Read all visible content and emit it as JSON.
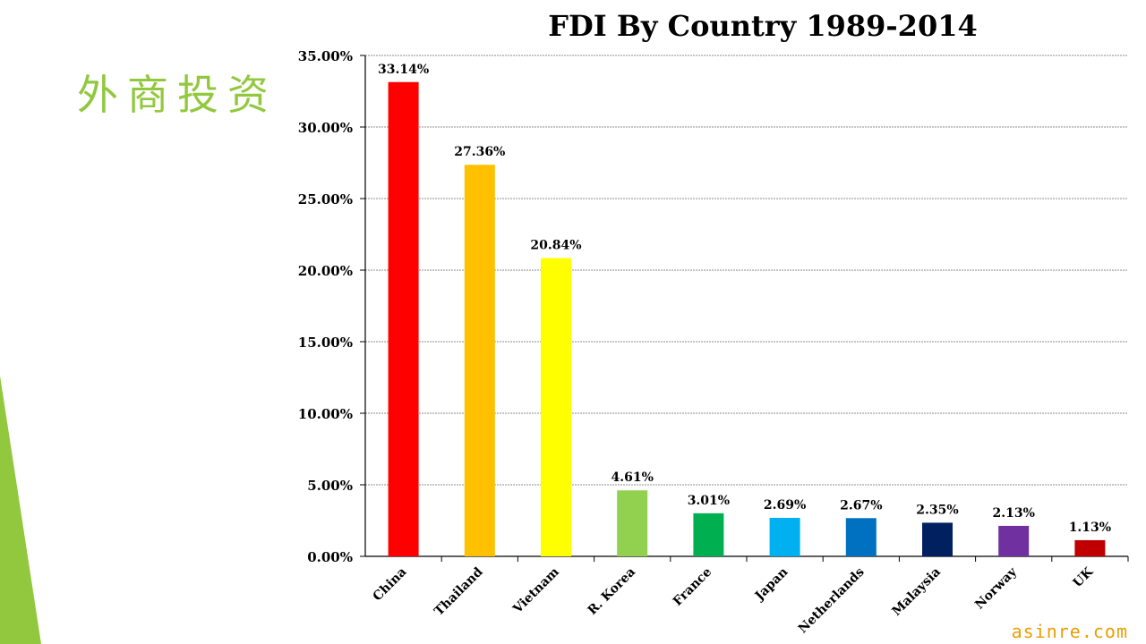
{
  "slide": {
    "title": "外商投资",
    "title_color": "#92c83e",
    "accent_color": "#92c83e",
    "watermark": "asinre.com",
    "watermark_color": "#e8a000"
  },
  "chart_data": {
    "type": "bar",
    "title": "FDI By Country 1989-2014",
    "xlabel": "",
    "ylabel": "",
    "categories": [
      "China",
      "Thailand",
      "Vietnam",
      "R. Korea",
      "France",
      "Japan",
      "Netherlands",
      "Malaysia",
      "Norway",
      "UK"
    ],
    "values": [
      33.14,
      27.36,
      20.84,
      4.61,
      3.01,
      2.69,
      2.67,
      2.35,
      2.13,
      1.13
    ],
    "value_labels": [
      "33.14%",
      "27.36%",
      "20.84%",
      "4.61%",
      "3.01%",
      "2.69%",
      "2.67%",
      "2.35%",
      "2.13%",
      "1.13%"
    ],
    "bar_colors": [
      "#ff0000",
      "#ffc000",
      "#ffff00",
      "#92d050",
      "#00b050",
      "#00b0f0",
      "#0070c0",
      "#002060",
      "#7030a0",
      "#c00000"
    ],
    "ylim": [
      0,
      35
    ],
    "yticks": [
      0,
      5,
      10,
      15,
      20,
      25,
      30,
      35
    ],
    "ytick_labels": [
      "0.00%",
      "5.00%",
      "10.00%",
      "15.00%",
      "20.00%",
      "25.00%",
      "30.00%",
      "35.00%"
    ],
    "grid": true,
    "legend": "none"
  }
}
